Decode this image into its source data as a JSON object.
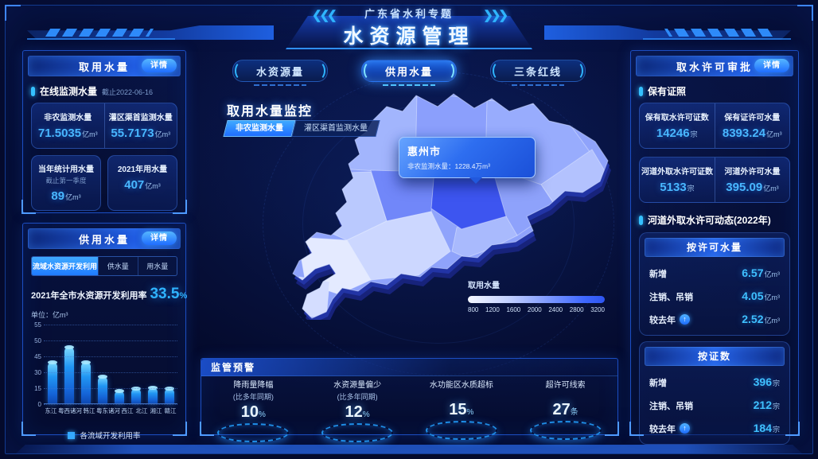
{
  "header": {
    "subtitle": "广东省水利专题",
    "title": "水资源管理",
    "left_chevrons": "❮❮❮",
    "right_chevrons": "❯❯❯"
  },
  "nav_tabs": [
    {
      "label": "水资源量",
      "active": false
    },
    {
      "label": "供用水量",
      "active": true
    },
    {
      "label": "三条红线",
      "active": false
    }
  ],
  "panels": {
    "water_intake": {
      "title": "取用水量",
      "detail_label": "详情",
      "section": {
        "title": "在线监测水量",
        "asof": "截止2022-06-16"
      },
      "pair_card": [
        {
          "label": "非农监测水量",
          "value": "71.5035",
          "unit": "亿m³"
        },
        {
          "label": "灌区渠首监测水量",
          "value": "55.7173",
          "unit": "亿m³"
        }
      ],
      "cards": [
        {
          "label": "当年统计用水量",
          "sub": "截止第一季度",
          "value": "89",
          "unit": "亿m³"
        },
        {
          "label": "2021年用水量",
          "sub": "",
          "value": "407",
          "unit": "亿m³"
        }
      ]
    },
    "supply_use": {
      "title": "供用水量",
      "detail_label": "详情",
      "tabs": [
        {
          "label": "流域水资源开发利用",
          "active": true
        },
        {
          "label": "供水量",
          "active": false
        },
        {
          "label": "用水量",
          "active": false
        }
      ],
      "headline": {
        "label": "2021年全市水资源开发利用率",
        "value": "33.5",
        "unit": "%"
      },
      "unit_label": "单位：亿m³",
      "legend": "各流域开发利用率"
    },
    "monitor": {
      "title": "取用水量监控",
      "chips": [
        {
          "label": "非农监测水量",
          "active": true
        },
        {
          "label": "灌区渠首监测水量",
          "active": false
        }
      ],
      "tooltip": {
        "city": "惠州市",
        "metric_label": "非农监测水量",
        "value": "1228.4",
        "unit": "万m³"
      },
      "scale": {
        "label": "取用水量",
        "ticks": [
          "800",
          "1200",
          "1600",
          "2000",
          "2400",
          "2800",
          "3200"
        ]
      }
    },
    "alerts": {
      "title": "监管预警",
      "items": [
        {
          "label": "降雨量降幅",
          "sub": "(比多年同期)",
          "value": "10",
          "unit": "%"
        },
        {
          "label": "水资源量偏少",
          "sub": "(比多年同期)",
          "value": "12",
          "unit": "%"
        },
        {
          "label": "水功能区水质超标",
          "sub": "",
          "value": "15",
          "unit": "%"
        },
        {
          "label": "超许可线索",
          "sub": "",
          "value": "27",
          "unit": "条"
        }
      ]
    },
    "permit": {
      "title": "取水许可审批",
      "detail_label": "详情",
      "section1": "保有证照",
      "pair_cards": [
        [
          {
            "label": "保有取水许可证数",
            "value": "14246",
            "unit": "宗"
          },
          {
            "label": "保有证许可水量",
            "value": "8393.24",
            "unit": "亿m³"
          }
        ],
        [
          {
            "label": "河道外取水许可证数",
            "value": "5133",
            "unit": "宗"
          },
          {
            "label": "河道外许可水量",
            "value": "395.09",
            "unit": "亿m³"
          }
        ]
      ],
      "section2": "河道外取水许可动态(2022年)",
      "dynamic_cards": [
        {
          "title": "按许可水量",
          "rows": [
            {
              "label": "新增",
              "arrow": false,
              "value": "6.57",
              "unit": "亿m³"
            },
            {
              "label": "注销、吊销",
              "arrow": false,
              "value": "4.05",
              "unit": "亿m³"
            },
            {
              "label": "较去年",
              "arrow": true,
              "value": "2.52",
              "unit": "亿m³"
            }
          ]
        },
        {
          "title": "按证数",
          "rows": [
            {
              "label": "新增",
              "arrow": false,
              "value": "396",
              "unit": "宗"
            },
            {
              "label": "注销、吊销",
              "arrow": false,
              "value": "212",
              "unit": "宗"
            },
            {
              "label": "较去年",
              "arrow": true,
              "value": "184",
              "unit": "宗"
            }
          ]
        }
      ]
    }
  },
  "chart_data": {
    "type": "bar",
    "title": "各流域开发利用率",
    "categories": [
      "东江",
      "粤西诸河",
      "韩江",
      "粤东诸河",
      "西江",
      "北江",
      "湘江",
      "赣江"
    ],
    "values": [
      40,
      48,
      40,
      26,
      13,
      15,
      16,
      15
    ],
    "xlabel": "",
    "ylabel": "亿m³",
    "axis_ticks": [
      0,
      15,
      30,
      45,
      50,
      55
    ],
    "ylim": [
      0,
      55
    ],
    "grid": true,
    "legend_position": "bottom",
    "note": "y-axis tick labels rendered at equal spacing (non-linear scale)"
  },
  "colors": {
    "accent": "#2f8fff",
    "value_blue": "#49b7ff",
    "panel_border": "#1c4ec2",
    "bar_top": "#7fdcff",
    "bar_bottom": "#0d47b0",
    "map_highlight": "#3d55f0"
  }
}
